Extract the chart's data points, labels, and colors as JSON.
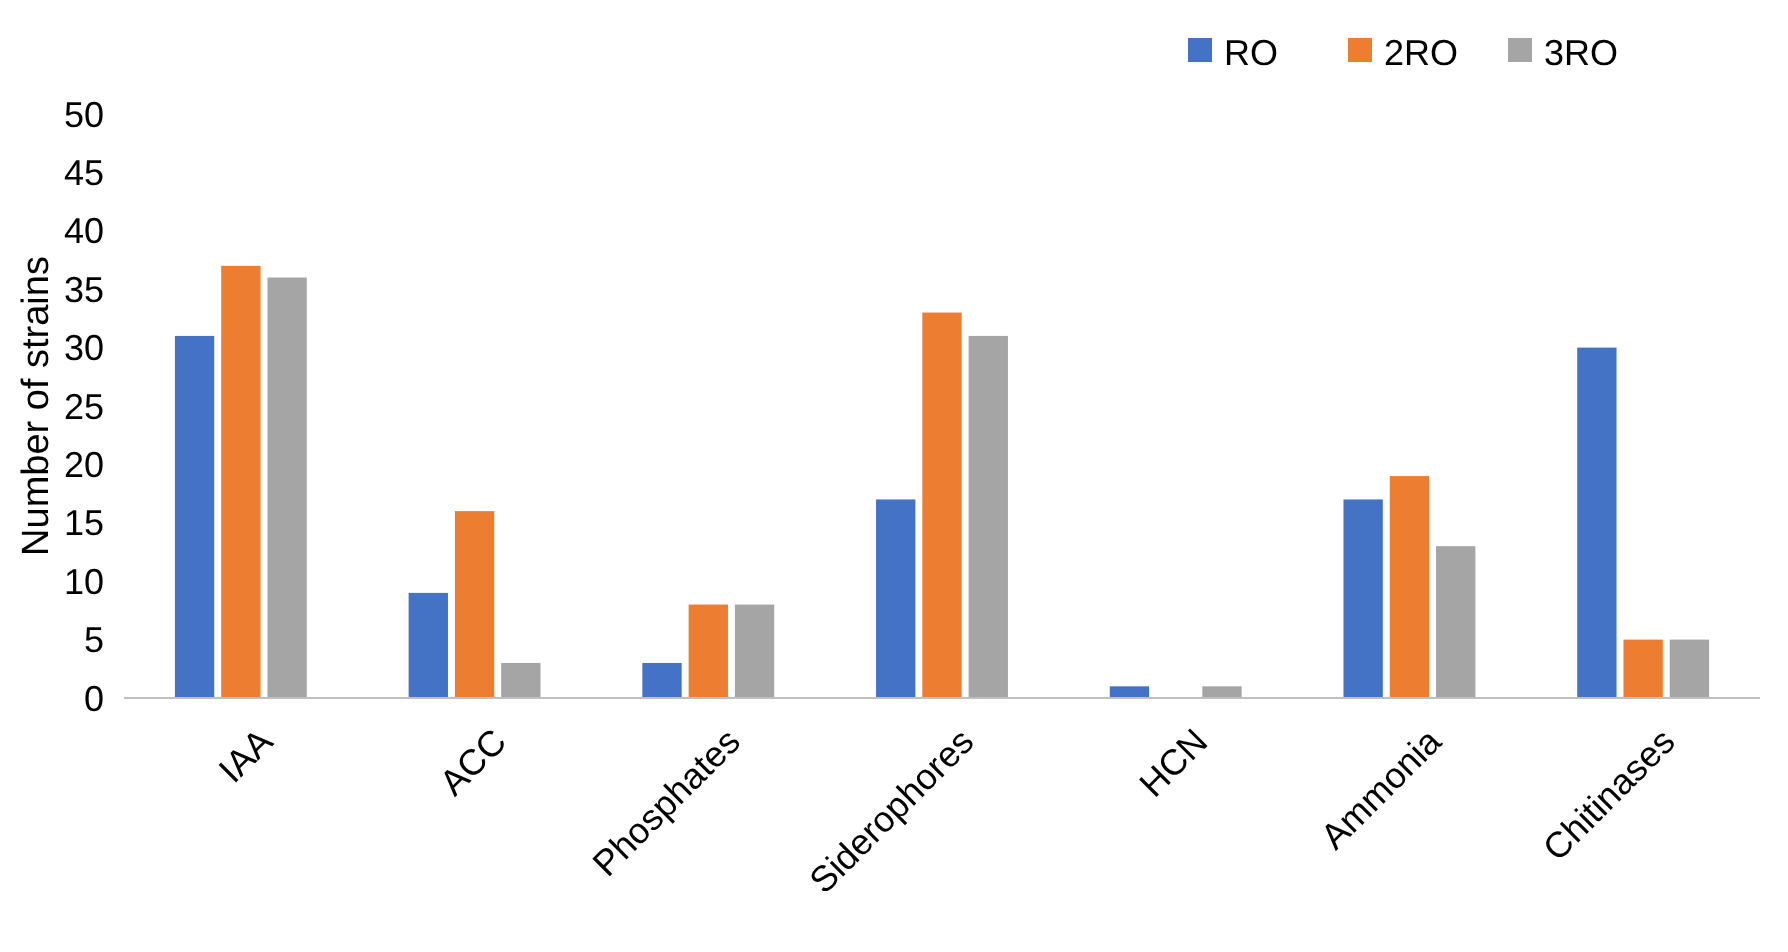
{
  "chart_data": {
    "type": "bar",
    "ylabel": "Number of strains",
    "categories": [
      "IAA",
      "ACC",
      "Phosphates",
      "Siderophores",
      "HCN",
      "Ammonia",
      "Chitinases"
    ],
    "series": [
      {
        "name": "RO",
        "color": "#4472c4",
        "values": [
          31,
          9,
          3,
          17,
          1,
          17,
          30
        ]
      },
      {
        "name": "2RO",
        "color": "#ed7d31",
        "values": [
          37,
          16,
          8,
          33,
          0,
          19,
          5
        ]
      },
      {
        "name": "3RO",
        "color": "#a5a5a5",
        "values": [
          36,
          3,
          8,
          31,
          1,
          13,
          5
        ]
      }
    ],
    "ylim": [
      0,
      50
    ],
    "yticks": [
      0,
      5,
      10,
      15,
      20,
      25,
      30,
      35,
      40,
      45,
      50
    ],
    "grid": false,
    "legend": "top right"
  }
}
